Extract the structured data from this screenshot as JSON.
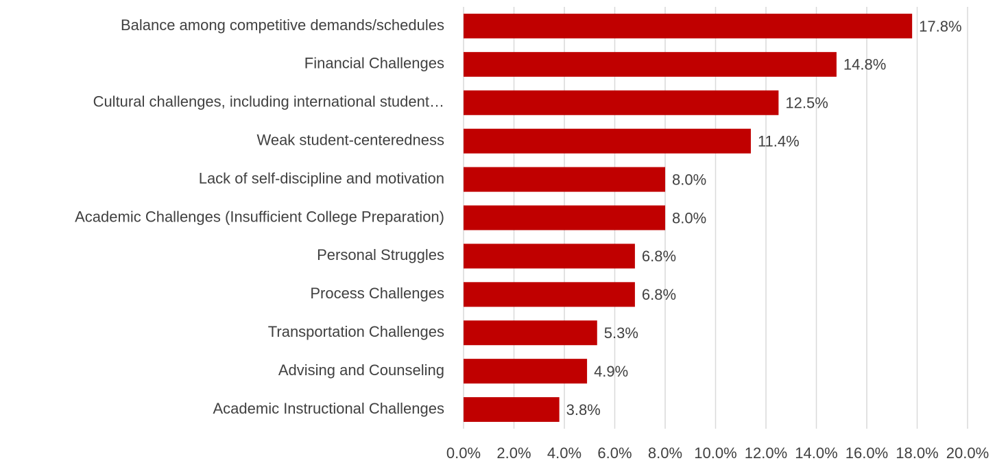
{
  "chart_data": {
    "type": "bar",
    "orientation": "horizontal",
    "categories": [
      "Balance among competitive demands/schedules",
      "Financial Challenges",
      "Cultural challenges, including international student…",
      "Weak student-centeredness",
      "Lack of self-discipline and motivation",
      "Academic Challenges (Insufficient College Preparation)",
      "Personal Struggles",
      "Process Challenges",
      "Transportation Challenges",
      "Advising and Counseling",
      "Academic Instructional Challenges"
    ],
    "values": [
      17.8,
      14.8,
      12.5,
      11.4,
      8.0,
      8.0,
      6.8,
      6.8,
      5.3,
      4.9,
      3.8
    ],
    "value_labels": [
      "17.8%",
      "14.8%",
      "12.5%",
      "11.4%",
      "8.0%",
      "8.0%",
      "6.8%",
      "6.8%",
      "5.3%",
      "4.9%",
      "3.8%"
    ],
    "color": "#c00000",
    "xlim": [
      0,
      20
    ],
    "xticks": [
      {
        "value": 0,
        "label": "0.0%"
      },
      {
        "value": 2,
        "label": "2.0%"
      },
      {
        "value": 4,
        "label": "4.0%"
      },
      {
        "value": 6,
        "label": "6.0%"
      },
      {
        "value": 8,
        "label": "8.0%"
      },
      {
        "value": 10,
        "label": "10.0%"
      },
      {
        "value": 12,
        "label": "12.0%"
      },
      {
        "value": 14,
        "label": "14.0%"
      },
      {
        "value": 16,
        "label": "16.0%"
      },
      {
        "value": 18,
        "label": "18.0%"
      },
      {
        "value": 20,
        "label": "20.0%"
      }
    ],
    "grid": true
  }
}
